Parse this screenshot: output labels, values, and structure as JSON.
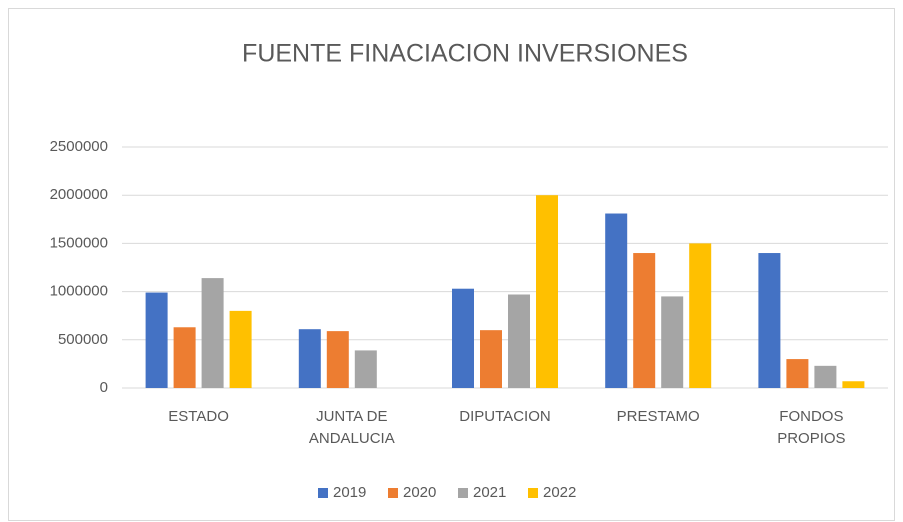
{
  "chart_data": {
    "type": "bar",
    "title": "FUENTE FINACIACION INVERSIONES",
    "categories": [
      "ESTADO",
      "JUNTA DE ANDALUCIA",
      "DIPUTACION",
      "PRESTAMO",
      "FONDOS PROPIOS"
    ],
    "series": [
      {
        "name": "2019",
        "color": "#4472c4",
        "values": [
          990000,
          610000,
          1030000,
          1810000,
          1400000
        ]
      },
      {
        "name": "2020",
        "color": "#ed7d31",
        "values": [
          630000,
          590000,
          600000,
          1400000,
          300000
        ]
      },
      {
        "name": "2021",
        "color": "#a5a5a5",
        "values": [
          1140000,
          390000,
          970000,
          950000,
          230000
        ]
      },
      {
        "name": "2022",
        "color": "#ffc000",
        "values": [
          800000,
          0,
          2000000,
          1500000,
          70000
        ]
      }
    ],
    "ylim": [
      0,
      2500000
    ],
    "yticks": [
      0,
      500000,
      1000000,
      1500000,
      2000000,
      2500000
    ],
    "grid": true,
    "legend": "bottom"
  }
}
